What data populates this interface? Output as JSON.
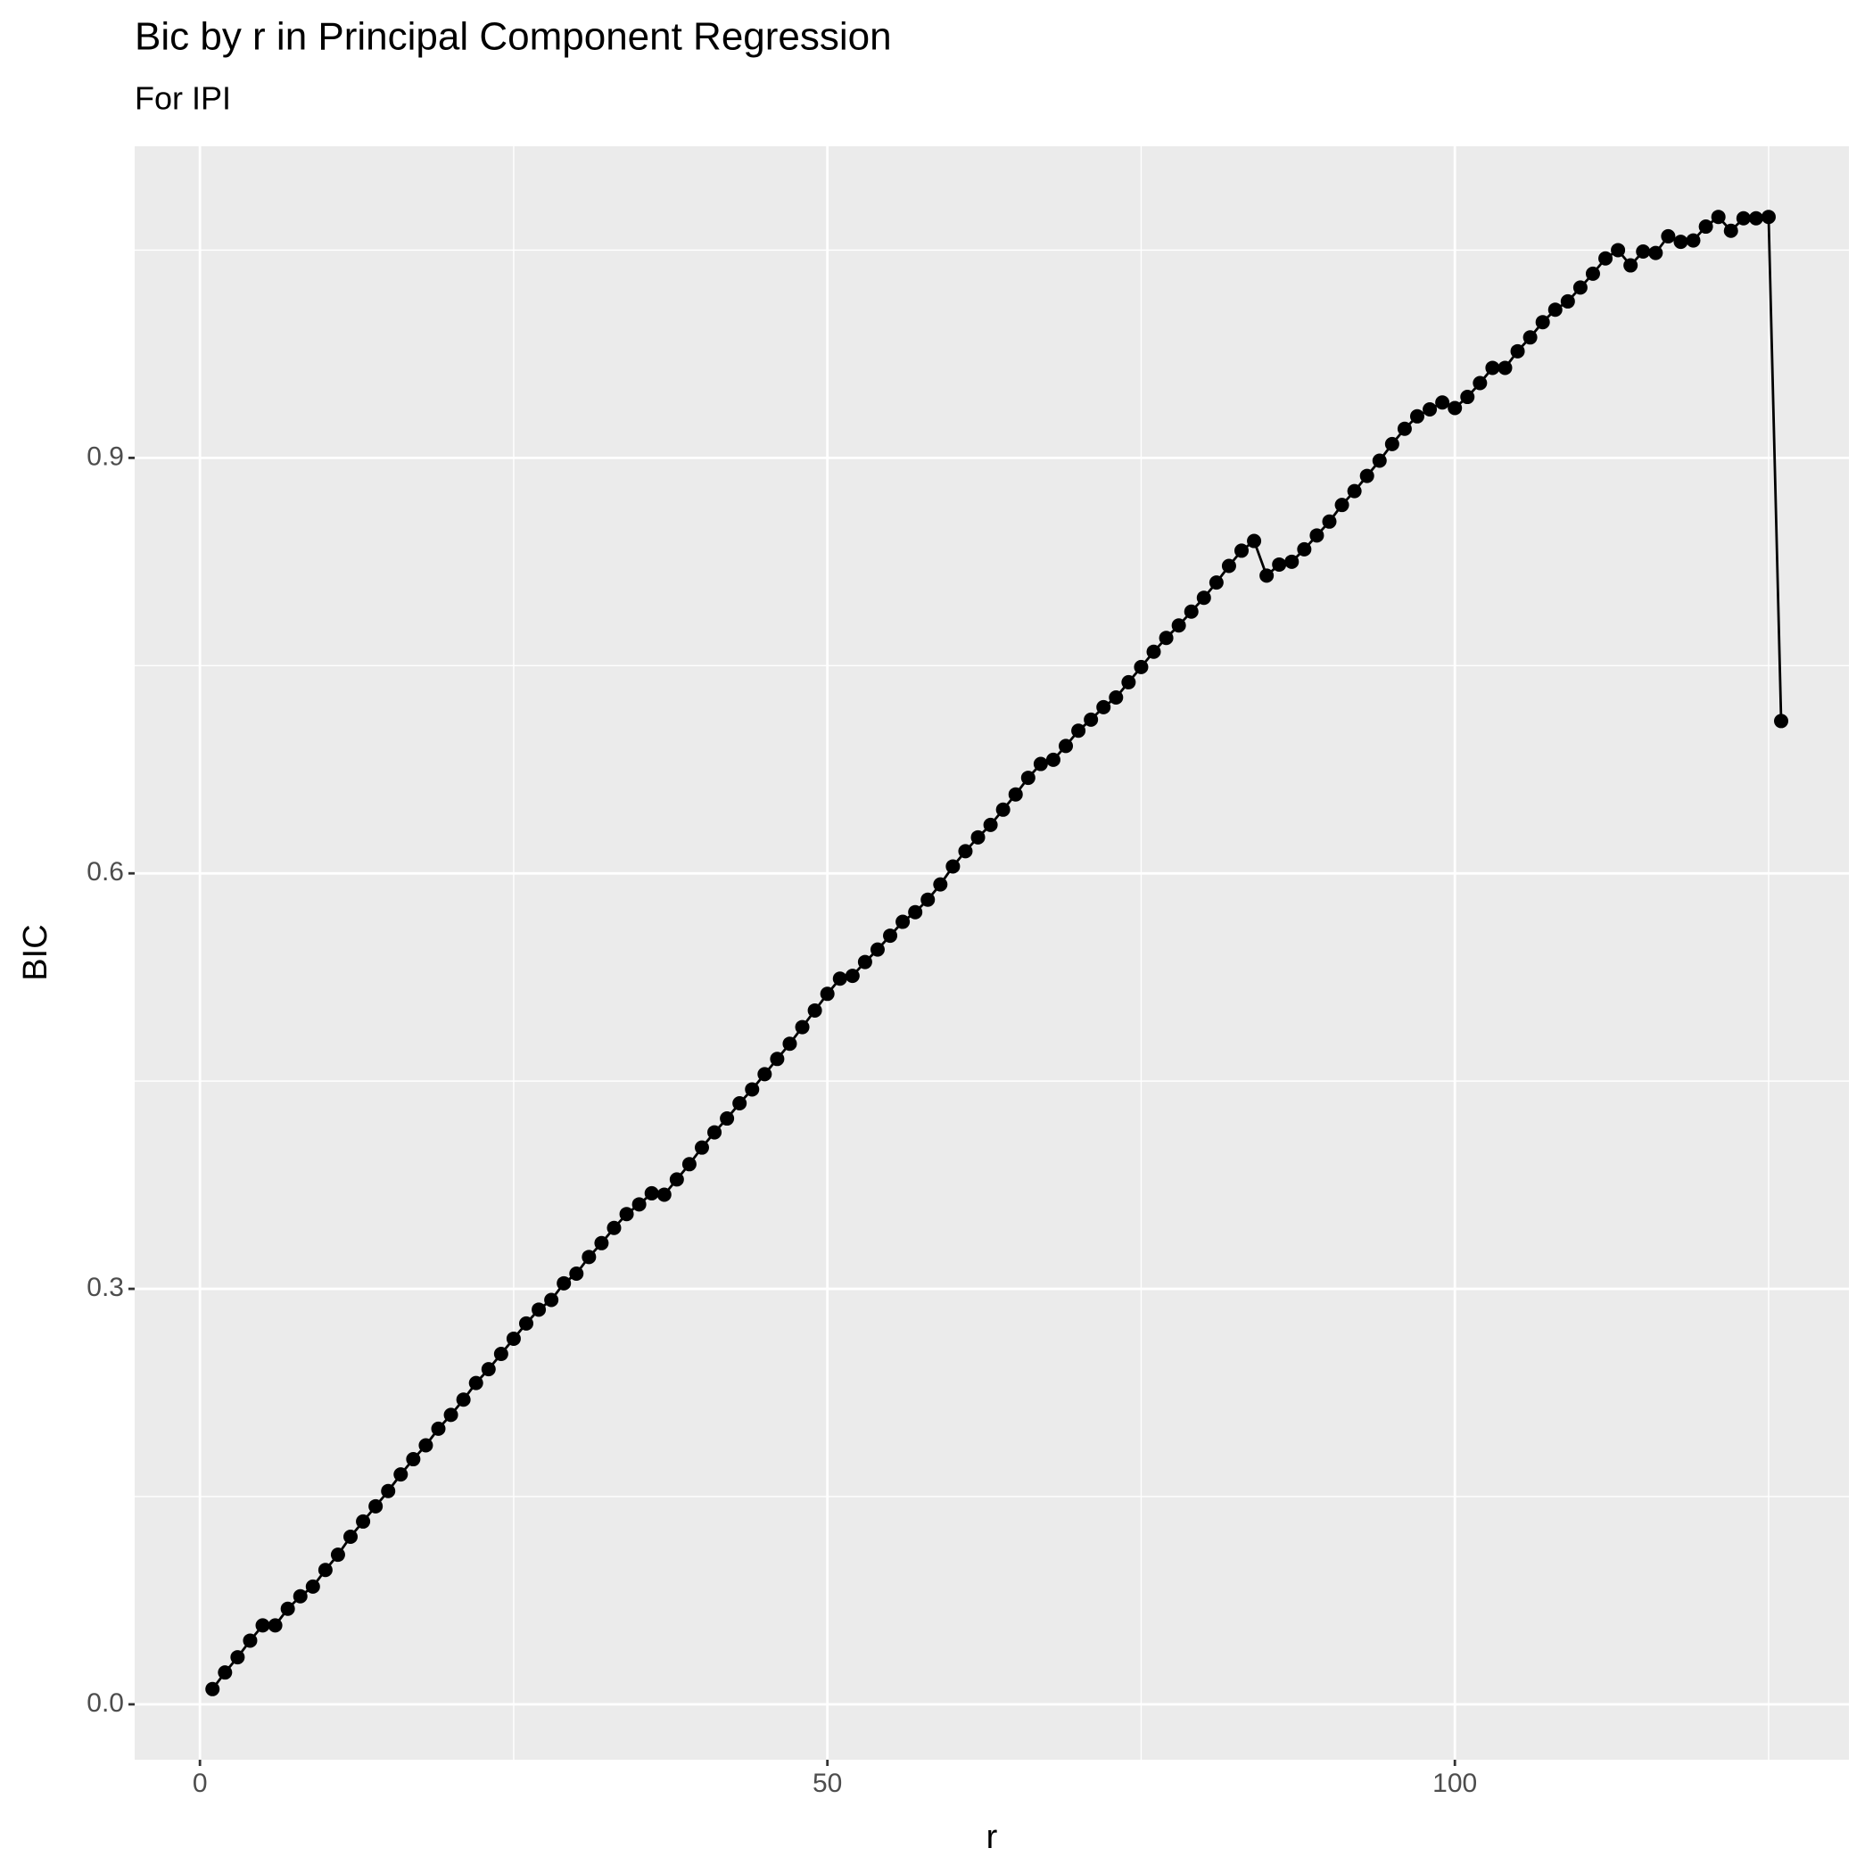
{
  "chart_data": {
    "type": "line",
    "title": "Bic by r in Principal Component Regression",
    "subtitle": "For IPI",
    "x_label": "r",
    "y_label": "BIC",
    "x": [
      1,
      2,
      3,
      4,
      5,
      6,
      7,
      8,
      9,
      10,
      11,
      12,
      13,
      14,
      15,
      16,
      17,
      18,
      19,
      20,
      21,
      22,
      23,
      24,
      25,
      26,
      27,
      28,
      29,
      30,
      31,
      32,
      33,
      34,
      35,
      36,
      37,
      38,
      39,
      40,
      41,
      42,
      43,
      44,
      45,
      46,
      47,
      48,
      49,
      50,
      51,
      52,
      53,
      54,
      55,
      56,
      57,
      58,
      59,
      60,
      61,
      62,
      63,
      64,
      65,
      66,
      67,
      68,
      69,
      70,
      71,
      72,
      73,
      74,
      75,
      76,
      77,
      78,
      79,
      80,
      81,
      82,
      83,
      84,
      85,
      86,
      87,
      88,
      89,
      90,
      91,
      92,
      93,
      94,
      95,
      96,
      97,
      98,
      99,
      100,
      101,
      102,
      103,
      104,
      105,
      106,
      107,
      108,
      109,
      110,
      111,
      112,
      113,
      114,
      115,
      116,
      117,
      118,
      119,
      120,
      121,
      122,
      123,
      124,
      125,
      126
    ],
    "series": [
      {
        "color": "#000000",
        "values": [
          0.011,
          0.023,
          0.034,
          0.046,
          0.057,
          0.057,
          0.069,
          0.078,
          0.085,
          0.097,
          0.108,
          0.121,
          0.132,
          0.143,
          0.154,
          0.166,
          0.177,
          0.187,
          0.199,
          0.209,
          0.22,
          0.232,
          0.242,
          0.253,
          0.264,
          0.275,
          0.285,
          0.292,
          0.304,
          0.311,
          0.323,
          0.333,
          0.344,
          0.354,
          0.361,
          0.369,
          0.368,
          0.379,
          0.39,
          0.402,
          0.413,
          0.423,
          0.434,
          0.444,
          0.455,
          0.466,
          0.477,
          0.489,
          0.501,
          0.513,
          0.524,
          0.526,
          0.536,
          0.545,
          0.555,
          0.565,
          0.572,
          0.581,
          0.592,
          0.605,
          0.616,
          0.626,
          0.635,
          0.646,
          0.657,
          0.669,
          0.679,
          0.682,
          0.692,
          0.703,
          0.711,
          0.72,
          0.727,
          0.738,
          0.749,
          0.76,
          0.77,
          0.779,
          0.789,
          0.799,
          0.81,
          0.822,
          0.833,
          0.84,
          0.815,
          0.823,
          0.825,
          0.834,
          0.844,
          0.854,
          0.866,
          0.876,
          0.887,
          0.898,
          0.91,
          0.921,
          0.93,
          0.935,
          0.94,
          0.936,
          0.944,
          0.954,
          0.965,
          0.965,
          0.977,
          0.987,
          0.998,
          1.007,
          1.013,
          1.023,
          1.033,
          1.044,
          1.05,
          1.039,
          1.049,
          1.048,
          1.06,
          1.056,
          1.057,
          1.067,
          1.074,
          1.064,
          1.073,
          1.073,
          1.074,
          0.71
        ]
      }
    ],
    "xlim": [
      -5.2,
      131.4
    ],
    "ylim": [
      -0.04,
      1.125
    ],
    "xticks": [
      0,
      50,
      100
    ],
    "yticks": [
      {
        "value": 0,
        "label": "0.0"
      },
      0.3,
      0.6,
      0.9
    ],
    "grid": true
  }
}
